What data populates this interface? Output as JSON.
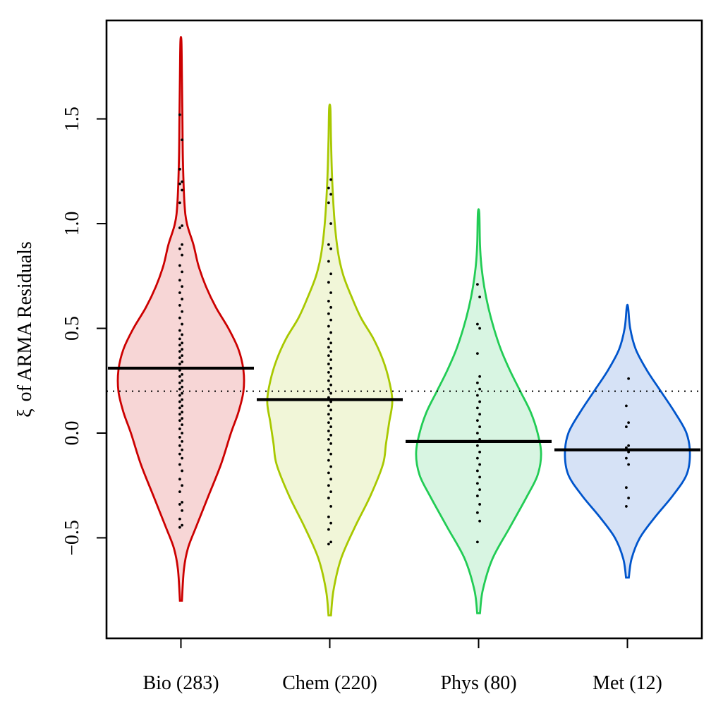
{
  "chart_data": {
    "type": "violin",
    "ylabel_symbol": "ξ",
    "ylabel": "of  ARMA Residuals",
    "xlabel": "",
    "ylim": [
      -0.98,
      1.97
    ],
    "yticks": [
      -0.5,
      0.0,
      0.5,
      1.0,
      1.5
    ],
    "ytick_labels": [
      "−0.5",
      "0.0",
      "0.5",
      "1.0",
      "1.5"
    ],
    "reference_line": {
      "y": 0.2,
      "style": "dotted"
    },
    "groups": [
      {
        "label": "Bio (283)",
        "n": 283,
        "color": "#cc0000",
        "fill": "#f7d6d6",
        "median": 0.31,
        "range": [
          -0.8,
          1.87
        ],
        "profile": [
          [
            -0.8,
            0.002
          ],
          [
            -0.65,
            0.006
          ],
          [
            -0.55,
            0.014
          ],
          [
            -0.45,
            0.03
          ],
          [
            -0.3,
            0.055
          ],
          [
            -0.15,
            0.08
          ],
          [
            0.0,
            0.1
          ],
          [
            0.1,
            0.115
          ],
          [
            0.2,
            0.125
          ],
          [
            0.3,
            0.125
          ],
          [
            0.4,
            0.115
          ],
          [
            0.5,
            0.095
          ],
          [
            0.6,
            0.07
          ],
          [
            0.7,
            0.05
          ],
          [
            0.8,
            0.035
          ],
          [
            0.9,
            0.025
          ],
          [
            1.0,
            0.012
          ],
          [
            1.1,
            0.007
          ],
          [
            1.3,
            0.004
          ],
          [
            1.5,
            0.003
          ],
          [
            1.7,
            0.002
          ],
          [
            1.87,
            0.001
          ]
        ],
        "points": [
          -0.45,
          -0.44,
          -0.41,
          -0.37,
          -0.34,
          -0.33,
          -0.28,
          -0.25,
          -0.22,
          -0.18,
          -0.15,
          -0.12,
          -0.1,
          -0.08,
          -0.06,
          -0.04,
          -0.02,
          0.0,
          0.02,
          0.04,
          0.06,
          0.07,
          0.09,
          0.1,
          0.12,
          0.13,
          0.15,
          0.16,
          0.18,
          0.19,
          0.21,
          0.22,
          0.24,
          0.25,
          0.27,
          0.28,
          0.3,
          0.31,
          0.33,
          0.34,
          0.36,
          0.37,
          0.39,
          0.4,
          0.42,
          0.43,
          0.45,
          0.47,
          0.49,
          0.52,
          0.55,
          0.58,
          0.61,
          0.64,
          0.67,
          0.7,
          0.73,
          0.77,
          0.8,
          0.85,
          0.88,
          0.9,
          0.98,
          0.99,
          1.1,
          1.16,
          1.19,
          1.2,
          1.26,
          1.4,
          1.52
        ]
      },
      {
        "label": "Chem (220)",
        "n": 220,
        "color": "#a8c800",
        "fill": "#f1f6d8",
        "median": 0.16,
        "range": [
          -0.87,
          1.55
        ],
        "profile": [
          [
            -0.87,
            0.002
          ],
          [
            -0.75,
            0.006
          ],
          [
            -0.6,
            0.018
          ],
          [
            -0.45,
            0.04
          ],
          [
            -0.3,
            0.065
          ],
          [
            -0.15,
            0.085
          ],
          [
            -0.05,
            0.09
          ],
          [
            0.05,
            0.095
          ],
          [
            0.15,
            0.1
          ],
          [
            0.25,
            0.095
          ],
          [
            0.35,
            0.085
          ],
          [
            0.45,
            0.07
          ],
          [
            0.55,
            0.05
          ],
          [
            0.65,
            0.035
          ],
          [
            0.75,
            0.022
          ],
          [
            0.85,
            0.014
          ],
          [
            1.0,
            0.008
          ],
          [
            1.2,
            0.004
          ],
          [
            1.4,
            0.002
          ],
          [
            1.55,
            0.001
          ]
        ],
        "points": [
          -0.53,
          -0.52,
          -0.46,
          -0.43,
          -0.4,
          -0.35,
          -0.31,
          -0.28,
          -0.25,
          -0.22,
          -0.19,
          -0.16,
          -0.13,
          -0.1,
          -0.08,
          -0.05,
          -0.03,
          -0.01,
          0.01,
          0.03,
          0.05,
          0.07,
          0.09,
          0.11,
          0.13,
          0.15,
          0.17,
          0.19,
          0.21,
          0.23,
          0.25,
          0.27,
          0.29,
          0.31,
          0.33,
          0.35,
          0.37,
          0.39,
          0.41,
          0.43,
          0.45,
          0.48,
          0.51,
          0.54,
          0.57,
          0.6,
          0.63,
          0.67,
          0.72,
          0.76,
          0.82,
          0.88,
          0.9,
          1.0,
          1.1,
          1.14,
          1.17,
          1.21
        ]
      },
      {
        "label": "Phys (80)",
        "n": 80,
        "color": "#22cc55",
        "fill": "#d8f5e2",
        "median": -0.04,
        "range": [
          -0.86,
          1.05
        ],
        "profile": [
          [
            -0.86,
            0.002
          ],
          [
            -0.75,
            0.006
          ],
          [
            -0.6,
            0.02
          ],
          [
            -0.45,
            0.045
          ],
          [
            -0.3,
            0.07
          ],
          [
            -0.2,
            0.085
          ],
          [
            -0.1,
            0.09
          ],
          [
            0.0,
            0.085
          ],
          [
            0.1,
            0.075
          ],
          [
            0.2,
            0.06
          ],
          [
            0.3,
            0.045
          ],
          [
            0.4,
            0.032
          ],
          [
            0.5,
            0.022
          ],
          [
            0.6,
            0.014
          ],
          [
            0.7,
            0.008
          ],
          [
            0.8,
            0.004
          ],
          [
            0.9,
            0.002
          ],
          [
            1.05,
            0.001
          ]
        ],
        "points": [
          -0.52,
          -0.42,
          -0.38,
          -0.34,
          -0.3,
          -0.27,
          -0.24,
          -0.21,
          -0.18,
          -0.15,
          -0.12,
          -0.09,
          -0.06,
          -0.03,
          0.0,
          0.03,
          0.06,
          0.09,
          0.12,
          0.15,
          0.18,
          0.21,
          0.24,
          0.27,
          0.38,
          0.5,
          0.52,
          0.65,
          0.71
        ]
      },
      {
        "label": "Met (12)",
        "n": 12,
        "color": "#0055cc",
        "fill": "#d6e2f6",
        "median": -0.08,
        "range": [
          -0.69,
          0.6
        ],
        "profile": [
          [
            -0.69,
            0.002
          ],
          [
            -0.6,
            0.006
          ],
          [
            -0.5,
            0.018
          ],
          [
            -0.4,
            0.04
          ],
          [
            -0.3,
            0.065
          ],
          [
            -0.2,
            0.085
          ],
          [
            -0.1,
            0.09
          ],
          [
            0.0,
            0.085
          ],
          [
            0.1,
            0.068
          ],
          [
            0.2,
            0.048
          ],
          [
            0.3,
            0.028
          ],
          [
            0.4,
            0.012
          ],
          [
            0.5,
            0.004
          ],
          [
            0.6,
            0.001
          ]
        ],
        "points": [
          -0.35,
          -0.31,
          -0.26,
          -0.15,
          -0.12,
          -0.09,
          -0.07,
          -0.06,
          0.03,
          0.05,
          0.13,
          0.26
        ]
      }
    ]
  }
}
